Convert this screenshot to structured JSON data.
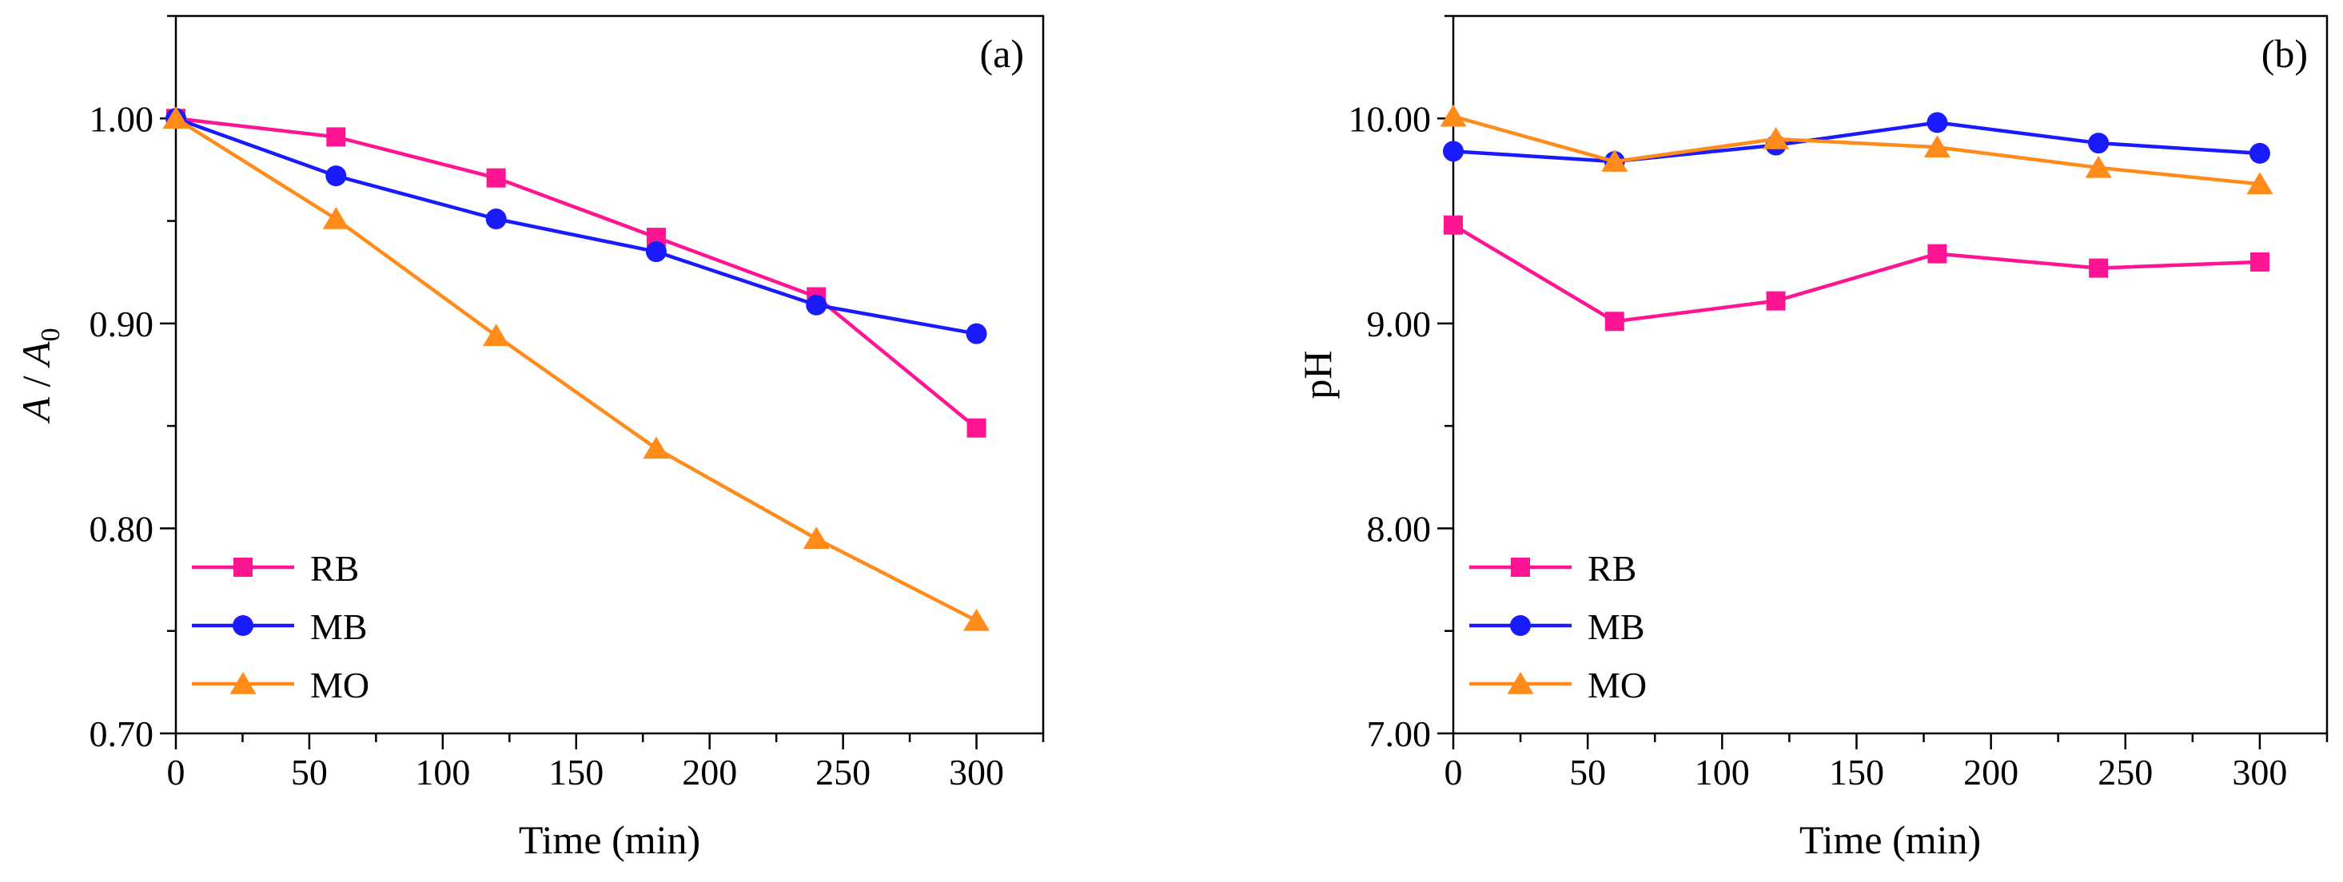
{
  "chart_data": [
    {
      "type": "line",
      "panel_label": "(a)",
      "xlabel": "Time (min)",
      "ylabel_main": "A",
      "ylabel_sep": " / ",
      "ylabel_base": "A",
      "ylabel_sub": "0",
      "xlim": [
        0,
        325
      ],
      "ylim": [
        0.7,
        1.05
      ],
      "xticks": [
        0,
        50,
        100,
        150,
        200,
        250,
        300
      ],
      "xtick_labels": [
        "0",
        "50",
        "100",
        "150",
        "200",
        "250",
        "300"
      ],
      "yticks": [
        0.7,
        0.8,
        0.9,
        1.0
      ],
      "ytick_labels": [
        "0.70",
        "0.80",
        "0.90",
        "1.00"
      ],
      "legend_position": "bottom-left",
      "grid": false,
      "x": [
        0,
        60,
        120,
        180,
        240,
        300
      ],
      "series": [
        {
          "name": "RB",
          "color": "#ff1493",
          "marker": "square",
          "values": [
            1.0,
            0.991,
            0.971,
            0.942,
            0.913,
            0.849
          ]
        },
        {
          "name": "MB",
          "color": "#1a1aff",
          "marker": "circle",
          "values": [
            1.0,
            0.972,
            0.951,
            0.935,
            0.909,
            0.895
          ]
        },
        {
          "name": "MO",
          "color": "#ff8c1a",
          "marker": "triangle",
          "values": [
            1.0,
            0.951,
            0.894,
            0.839,
            0.795,
            0.755
          ]
        }
      ]
    },
    {
      "type": "line",
      "panel_label": "(b)",
      "xlabel": "Time (min)",
      "ylabel": "pH",
      "xlim": [
        0,
        325
      ],
      "ylim": [
        7.0,
        10.5
      ],
      "xticks": [
        0,
        50,
        100,
        150,
        200,
        250,
        300
      ],
      "xtick_labels": [
        "0",
        "50",
        "100",
        "150",
        "200",
        "250",
        "300"
      ],
      "yticks": [
        7.0,
        8.0,
        9.0,
        10.0
      ],
      "ytick_labels": [
        "7.00",
        "8.00",
        "9.00",
        "10.00"
      ],
      "legend_position": "bottom-left",
      "grid": false,
      "x": [
        0,
        60,
        120,
        180,
        240,
        300
      ],
      "series": [
        {
          "name": "RB",
          "color": "#ff1493",
          "marker": "square",
          "values": [
            9.48,
            9.01,
            9.11,
            9.34,
            9.27,
            9.3
          ]
        },
        {
          "name": "MB",
          "color": "#1a1aff",
          "marker": "circle",
          "values": [
            9.84,
            9.79,
            9.87,
            9.98,
            9.88,
            9.83
          ]
        },
        {
          "name": "MO",
          "color": "#ff8c1a",
          "marker": "triangle",
          "values": [
            10.01,
            9.79,
            9.9,
            9.86,
            9.76,
            9.68
          ]
        }
      ]
    }
  ]
}
